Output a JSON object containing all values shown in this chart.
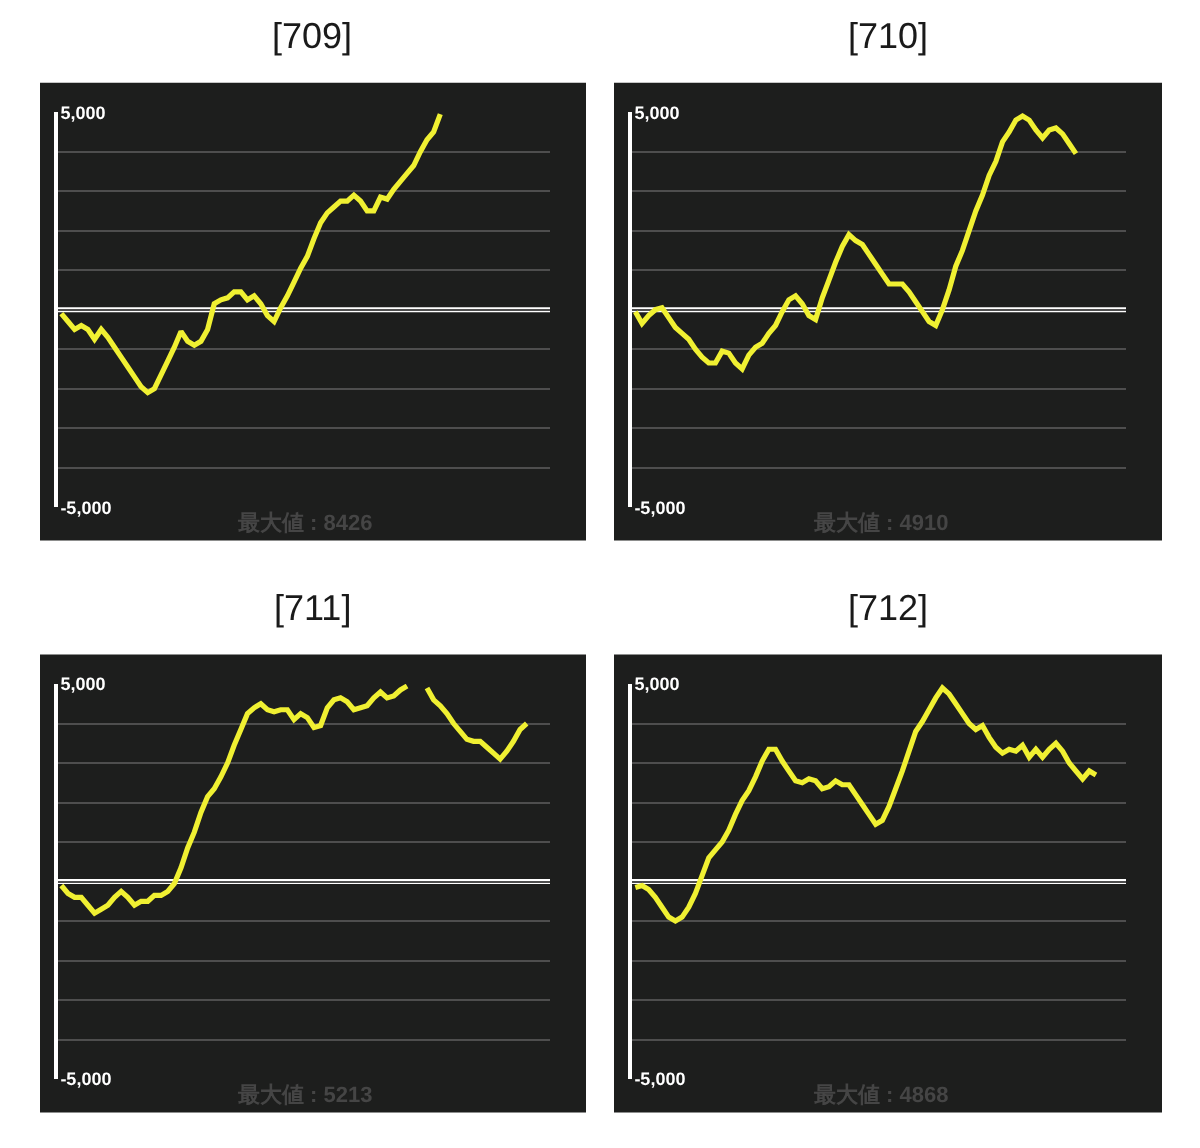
{
  "chart_data": [
    {
      "type": "line",
      "title": "[709]",
      "categories": [
        null,
        null,
        null,
        null,
        null,
        null,
        null,
        null,
        null,
        null,
        null,
        null,
        null,
        null,
        null,
        null,
        null,
        null,
        null,
        null,
        null,
        null,
        null,
        null,
        null,
        null,
        null,
        null,
        null,
        null,
        null,
        null,
        null,
        null,
        null,
        null,
        null,
        null,
        null,
        null,
        null,
        null,
        null,
        null,
        null,
        null,
        null,
        null,
        null,
        null,
        null,
        null,
        null,
        null,
        null,
        null,
        null,
        null,
        null,
        null,
        null,
        null,
        null,
        null,
        null,
        null,
        null,
        null,
        null,
        null,
        null,
        null,
        null,
        null
      ],
      "series": [
        {
          "color": "#f0f032",
          "values": [
            -100,
            -300,
            -500,
            -400,
            -500,
            -750,
            -500,
            -700,
            -950,
            -1200,
            -1450,
            -1700,
            -1950,
            -2100,
            -2000,
            -1650,
            -1300,
            -950,
            -550,
            -800,
            -900,
            -800,
            -500,
            150,
            250,
            300,
            450,
            450,
            250,
            350,
            150,
            -150,
            -300,
            50,
            350,
            700,
            1050,
            1350,
            1800,
            2200,
            2450,
            2600,
            2750,
            2750,
            2900,
            2750,
            2500,
            2500,
            2850,
            2800,
            3050,
            3250,
            3450,
            3650,
            4000,
            4300,
            4500,
            4950,
            null,
            null,
            null,
            null,
            null,
            null,
            null,
            null,
            null,
            null,
            null,
            null,
            null,
            null,
            null,
            null
          ]
        }
      ],
      "ylim": [
        -5000,
        5000
      ],
      "yticks": [
        {
          "value": -5000,
          "label": "-5,000"
        },
        {
          "value": -4000,
          "label": null
        },
        {
          "value": -3000,
          "label": null
        },
        {
          "value": -2000,
          "label": null
        },
        {
          "value": -1000,
          "label": null
        },
        {
          "value": 0,
          "label": null
        },
        {
          "value": 1000,
          "label": null
        },
        {
          "value": 2000,
          "label": null
        },
        {
          "value": 3000,
          "label": null
        },
        {
          "value": 4000,
          "label": null
        },
        {
          "value": 5000,
          "label": "5,000"
        }
      ],
      "grid": "y",
      "tick_labels": "y",
      "ref_lines": [
        {
          "axis": "y",
          "value": 0,
          "color": "#ffffff"
        }
      ],
      "annotations": [
        "最大値 : 8426"
      ]
    },
    {
      "type": "line",
      "title": "[710]",
      "categories": [
        null,
        null,
        null,
        null,
        null,
        null,
        null,
        null,
        null,
        null,
        null,
        null,
        null,
        null,
        null,
        null,
        null,
        null,
        null,
        null,
        null,
        null,
        null,
        null,
        null,
        null,
        null,
        null,
        null,
        null,
        null,
        null,
        null,
        null,
        null,
        null,
        null,
        null,
        null,
        null,
        null,
        null,
        null,
        null,
        null,
        null,
        null,
        null,
        null,
        null,
        null,
        null,
        null,
        null,
        null,
        null,
        null,
        null,
        null,
        null,
        null,
        null,
        null,
        null,
        null,
        null,
        null,
        null,
        null,
        null,
        null,
        null,
        null,
        null
      ],
      "series": [
        {
          "color": "#f0f032",
          "values": [
            -50,
            -350,
            -150,
            0,
            50,
            -200,
            -450,
            -600,
            -750,
            -1000,
            -1200,
            -1350,
            -1350,
            -1050,
            -1100,
            -1350,
            -1500,
            -1150,
            -950,
            -850,
            -600,
            -400,
            -50,
            250,
            350,
            150,
            -150,
            -250,
            300,
            750,
            1200,
            1600,
            1900,
            1750,
            1650,
            1400,
            1150,
            900,
            650,
            650,
            650,
            450,
            200,
            -50,
            -300,
            -400,
            0,
            500,
            1100,
            1500,
            2000,
            2500,
            2900,
            3400,
            3750,
            4250,
            4500,
            4800,
            4900,
            4800,
            4550,
            4350,
            4550,
            4600,
            4450,
            4200,
            3950,
            null,
            null,
            null,
            null,
            null,
            null,
            null
          ]
        }
      ],
      "ylim": [
        -5000,
        5000
      ],
      "yticks": [
        {
          "value": -5000,
          "label": "-5,000"
        },
        {
          "value": -4000,
          "label": null
        },
        {
          "value": -3000,
          "label": null
        },
        {
          "value": -2000,
          "label": null
        },
        {
          "value": -1000,
          "label": null
        },
        {
          "value": 0,
          "label": null
        },
        {
          "value": 1000,
          "label": null
        },
        {
          "value": 2000,
          "label": null
        },
        {
          "value": 3000,
          "label": null
        },
        {
          "value": 4000,
          "label": null
        },
        {
          "value": 5000,
          "label": "5,000"
        }
      ],
      "grid": "y",
      "tick_labels": "y",
      "ref_lines": [
        {
          "axis": "y",
          "value": 0,
          "color": "#ffffff"
        }
      ],
      "annotations": [
        "最大値 : 4910"
      ]
    },
    {
      "type": "line",
      "title": "[711]",
      "categories": [
        null,
        null,
        null,
        null,
        null,
        null,
        null,
        null,
        null,
        null,
        null,
        null,
        null,
        null,
        null,
        null,
        null,
        null,
        null,
        null,
        null,
        null,
        null,
        null,
        null,
        null,
        null,
        null,
        null,
        null,
        null,
        null,
        null,
        null,
        null,
        null,
        null,
        null,
        null,
        null,
        null,
        null,
        null,
        null,
        null,
        null,
        null,
        null,
        null,
        null,
        null,
        null,
        null,
        null,
        null,
        null,
        null,
        null,
        null,
        null,
        null,
        null,
        null,
        null,
        null,
        null,
        null,
        null,
        null,
        null,
        null,
        null,
        null,
        null
      ],
      "series": [
        {
          "color": "#f0f032",
          "values": [
            -100,
            -300,
            -400,
            -400,
            -600,
            -800,
            -700,
            -600,
            -400,
            -250,
            -400,
            -600,
            -500,
            -500,
            -350,
            -350,
            -250,
            -50,
            350,
            850,
            1250,
            1750,
            2150,
            2350,
            2650,
            3000,
            3450,
            3850,
            4250,
            4400,
            4500,
            4350,
            4300,
            4350,
            4350,
            4100,
            4250,
            4150,
            3900,
            3950,
            4400,
            4600,
            4650,
            4550,
            4350,
            4400,
            4450,
            4650,
            4800,
            4650,
            4700,
            4850,
            4950,
            null,
            null,
            4900,
            4600,
            4450,
            4250,
            4000,
            3800,
            3600,
            3550,
            3550,
            3400,
            3250,
            3100,
            3300,
            3550,
            3850,
            4000,
            null,
            null,
            null
          ]
        }
      ],
      "ylim": [
        -5000,
        5000
      ],
      "yticks": [
        {
          "value": -5000,
          "label": "-5,000"
        },
        {
          "value": -4000,
          "label": null
        },
        {
          "value": -3000,
          "label": null
        },
        {
          "value": -2000,
          "label": null
        },
        {
          "value": -1000,
          "label": null
        },
        {
          "value": 0,
          "label": null
        },
        {
          "value": 1000,
          "label": null
        },
        {
          "value": 2000,
          "label": null
        },
        {
          "value": 3000,
          "label": null
        },
        {
          "value": 4000,
          "label": null
        },
        {
          "value": 5000,
          "label": "5,000"
        }
      ],
      "grid": "y",
      "tick_labels": "y",
      "ref_lines": [
        {
          "axis": "y",
          "value": 0,
          "color": "#ffffff"
        }
      ],
      "annotations": [
        "最大値 : 5213"
      ]
    },
    {
      "type": "line",
      "title": "[712]",
      "categories": [
        null,
        null,
        null,
        null,
        null,
        null,
        null,
        null,
        null,
        null,
        null,
        null,
        null,
        null,
        null,
        null,
        null,
        null,
        null,
        null,
        null,
        null,
        null,
        null,
        null,
        null,
        null,
        null,
        null,
        null,
        null,
        null,
        null,
        null,
        null,
        null,
        null,
        null,
        null,
        null,
        null,
        null,
        null,
        null,
        null,
        null,
        null,
        null,
        null,
        null,
        null,
        null,
        null,
        null,
        null,
        null,
        null,
        null,
        null,
        null,
        null,
        null,
        null,
        null,
        null,
        null,
        null,
        null,
        null,
        null,
        null,
        null,
        null,
        null
      ],
      "series": [
        {
          "color": "#f0f032",
          "values": [
            -150,
            -100,
            -200,
            -400,
            -650,
            -900,
            -1000,
            -900,
            -650,
            -300,
            150,
            600,
            800,
            1000,
            1300,
            1700,
            2050,
            2300,
            2650,
            3050,
            3350,
            3350,
            3050,
            2800,
            2550,
            2500,
            2600,
            2550,
            2350,
            2400,
            2550,
            2450,
            2450,
            2200,
            1950,
            1700,
            1450,
            1550,
            1900,
            2350,
            2800,
            3300,
            3800,
            4050,
            4350,
            4650,
            4900,
            4750,
            4500,
            4250,
            4000,
            3850,
            3950,
            3650,
            3400,
            3250,
            3350,
            3300,
            3450,
            3150,
            3350,
            3150,
            3350,
            3500,
            3300,
            3000,
            2800,
            2600,
            2800,
            2700,
            null,
            null,
            null,
            null
          ]
        }
      ],
      "ylim": [
        -5000,
        5000
      ],
      "yticks": [
        {
          "value": -5000,
          "label": "-5,000"
        },
        {
          "value": -4000,
          "label": null
        },
        {
          "value": -3000,
          "label": null
        },
        {
          "value": -2000,
          "label": null
        },
        {
          "value": -1000,
          "label": null
        },
        {
          "value": 0,
          "label": null
        },
        {
          "value": 1000,
          "label": null
        },
        {
          "value": 2000,
          "label": null
        },
        {
          "value": 3000,
          "label": null
        },
        {
          "value": 4000,
          "label": null
        },
        {
          "value": 5000,
          "label": "5,000"
        }
      ],
      "grid": "y",
      "tick_labels": "y",
      "ref_lines": [
        {
          "axis": "y",
          "value": 0,
          "color": "#ffffff"
        }
      ],
      "annotations": [
        "最大値 : 4868"
      ]
    }
  ]
}
